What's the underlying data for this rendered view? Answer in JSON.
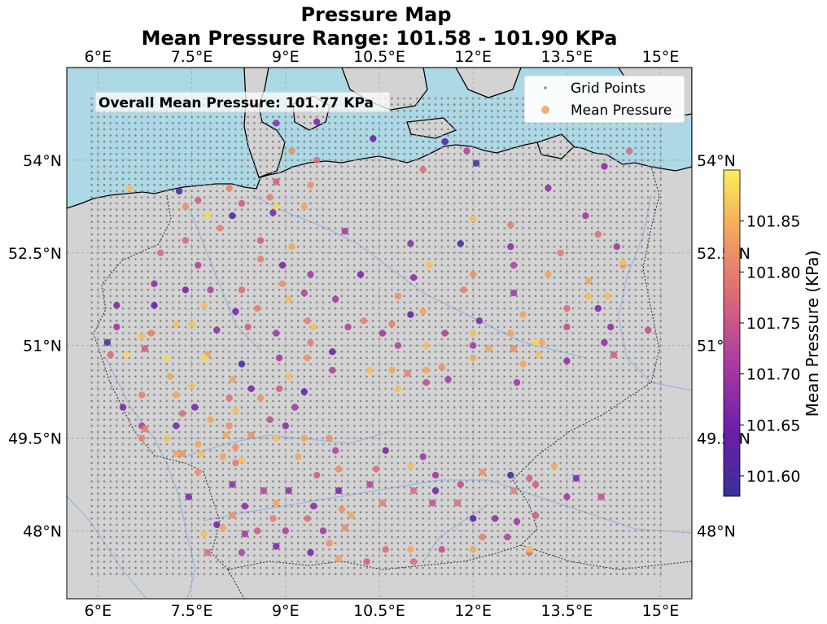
{
  "title": {
    "line1": "Pressure Map",
    "line2": "Mean Pressure Range: 101.58 - 101.90 KPa"
  },
  "annotation": "Overall Mean Pressure: 101.77 KPa",
  "legend": {
    "grid_points": "Grid Points",
    "mean_pressure": "Mean Pressure"
  },
  "colorbar": {
    "label": "Mean Pressure (KPa)",
    "ticks": [
      "101.60",
      "101.65",
      "101.70",
      "101.75",
      "101.80",
      "101.85"
    ]
  },
  "axes": {
    "lon_ticks": [
      "6°E",
      "7.5°E",
      "9°E",
      "10.5°E",
      "12°E",
      "13.5°E",
      "15°E"
    ],
    "lat_ticks": [
      "54°N",
      "52.5°N",
      "51°N",
      "49.5°N",
      "48°N"
    ]
  },
  "colors": {
    "sea": "#add8e6",
    "land": "#d3d3d3",
    "grid_points": "#808080",
    "rivers": "#9ab8e0",
    "plasma_low": "#3c2f96",
    "plasma_high": "#f7f058"
  },
  "chart_data": {
    "type": "scatter",
    "extent": {
      "lon": [
        5.5,
        15.5
      ],
      "lat": [
        46.9,
        55.5
      ]
    },
    "grid_extent": {
      "lon": [
        5.9,
        15.0
      ],
      "lat": [
        47.3,
        55.05
      ]
    },
    "value_range": [
      101.58,
      101.9
    ],
    "overall_mean": 101.77,
    "stations": [
      [
        8.85,
        54.6,
        101.68
      ],
      [
        9.5,
        54.62,
        101.66
      ],
      [
        10.4,
        54.35,
        101.64
      ],
      [
        11.55,
        54.3,
        101.62
      ],
      [
        9.1,
        54.15,
        101.82
      ],
      [
        9.5,
        54.0,
        101.78
      ],
      [
        11.9,
        54.15,
        101.72
      ],
      [
        12.05,
        53.95,
        101.6
      ],
      [
        14.5,
        54.15,
        101.78
      ],
      [
        14.1,
        53.9,
        101.68
      ],
      [
        11.2,
        53.85,
        101.78
      ],
      [
        6.5,
        53.55,
        101.86
      ],
      [
        7.3,
        53.5,
        101.6
      ],
      [
        7.4,
        53.25,
        101.82
      ],
      [
        7.6,
        53.35,
        101.76
      ],
      [
        8.1,
        53.55,
        101.8
      ],
      [
        8.75,
        53.4,
        101.8
      ],
      [
        8.85,
        53.65,
        101.76
      ],
      [
        9.4,
        53.6,
        101.82
      ],
      [
        13.2,
        53.55,
        101.68
      ],
      [
        8.3,
        53.3,
        101.76
      ],
      [
        8.85,
        53.25,
        101.88
      ],
      [
        9.3,
        53.25,
        101.84
      ],
      [
        8.15,
        53.1,
        101.6
      ],
      [
        7.75,
        53.1,
        101.88
      ],
      [
        8.8,
        53.15,
        101.66
      ],
      [
        12.0,
        53.05,
        101.86
      ],
      [
        12.6,
        52.95,
        101.8
      ],
      [
        13.8,
        53.1,
        101.7
      ],
      [
        14.0,
        52.8,
        101.78
      ],
      [
        7.95,
        52.9,
        101.8
      ],
      [
        7.4,
        52.7,
        101.78
      ],
      [
        8.6,
        52.7,
        101.76
      ],
      [
        9.95,
        52.85,
        101.7
      ],
      [
        11.0,
        52.65,
        101.68
      ],
      [
        11.8,
        52.65,
        101.6
      ],
      [
        12.6,
        52.6,
        101.68
      ],
      [
        13.4,
        52.5,
        101.8
      ],
      [
        14.3,
        52.6,
        101.7
      ],
      [
        7.0,
        52.5,
        101.78
      ],
      [
        9.1,
        52.6,
        101.84
      ],
      [
        8.6,
        52.4,
        101.8
      ],
      [
        7.6,
        52.3,
        101.72
      ],
      [
        8.95,
        52.3,
        101.66
      ],
      [
        14.4,
        52.3,
        101.82
      ],
      [
        11.3,
        52.3,
        101.86
      ],
      [
        12.65,
        52.3,
        101.72
      ],
      [
        14.4,
        52.35,
        101.86
      ],
      [
        9.4,
        52.15,
        101.7
      ],
      [
        10.2,
        52.15,
        101.66
      ],
      [
        11.05,
        52.1,
        101.68
      ],
      [
        12.0,
        52.15,
        101.82
      ],
      [
        13.2,
        52.15,
        101.84
      ],
      [
        13.85,
        52.05,
        101.84
      ],
      [
        6.9,
        52.0,
        101.68
      ],
      [
        7.4,
        51.9,
        101.66
      ],
      [
        7.8,
        51.9,
        101.72
      ],
      [
        8.3,
        51.9,
        101.78
      ],
      [
        8.95,
        52.0,
        101.82
      ],
      [
        8.2,
        51.55,
        101.66
      ],
      [
        9.3,
        51.85,
        101.72
      ],
      [
        9.8,
        51.75,
        101.7
      ],
      [
        10.8,
        51.8,
        101.82
      ],
      [
        11.85,
        51.9,
        101.8
      ],
      [
        12.65,
        51.85,
        101.7
      ],
      [
        13.85,
        51.8,
        101.86
      ],
      [
        14.15,
        51.8,
        101.86
      ],
      [
        6.3,
        51.65,
        101.66
      ],
      [
        6.9,
        51.65,
        101.64
      ],
      [
        7.7,
        51.65,
        101.86
      ],
      [
        8.55,
        51.6,
        101.8
      ],
      [
        9.05,
        51.75,
        101.86
      ],
      [
        11.0,
        51.5,
        101.64
      ],
      [
        11.2,
        51.55,
        101.84
      ],
      [
        12.1,
        51.4,
        101.66
      ],
      [
        12.8,
        51.5,
        101.84
      ],
      [
        13.5,
        51.6,
        101.78
      ],
      [
        14.0,
        51.6,
        101.66
      ],
      [
        6.3,
        51.3,
        101.7
      ],
      [
        7.25,
        51.35,
        101.86
      ],
      [
        7.5,
        51.35,
        101.86
      ],
      [
        7.9,
        51.25,
        101.68
      ],
      [
        8.4,
        51.3,
        101.76
      ],
      [
        9.35,
        51.4,
        101.8
      ],
      [
        9.45,
        51.3,
        101.86
      ],
      [
        10.0,
        51.3,
        101.72
      ],
      [
        10.55,
        51.2,
        101.7
      ],
      [
        10.25,
        51.4,
        101.8
      ],
      [
        11.55,
        51.2,
        101.72
      ],
      [
        12.0,
        51.2,
        101.86
      ],
      [
        12.6,
        51.2,
        101.84
      ],
      [
        13.5,
        51.3,
        101.74
      ],
      [
        14.2,
        51.3,
        101.68
      ],
      [
        14.8,
        51.25,
        101.74
      ],
      [
        6.85,
        51.2,
        101.8
      ],
      [
        6.7,
        51.15,
        101.86
      ],
      [
        6.15,
        51.05,
        101.6
      ],
      [
        8.85,
        51.2,
        101.7
      ],
      [
        10.7,
        51.35,
        101.8
      ],
      [
        7.75,
        50.85,
        101.84
      ],
      [
        9.4,
        51.05,
        101.8
      ],
      [
        9.75,
        50.9,
        101.64
      ],
      [
        10.8,
        51.0,
        101.72
      ],
      [
        11.25,
        51.0,
        101.86
      ],
      [
        12.0,
        51.0,
        101.7
      ],
      [
        12.25,
        50.95,
        101.84
      ],
      [
        12.65,
        50.95,
        101.82
      ],
      [
        13.0,
        51.05,
        101.88
      ],
      [
        14.1,
        51.05,
        101.68
      ],
      [
        6.2,
        50.85,
        101.78
      ],
      [
        6.45,
        50.85,
        101.88
      ],
      [
        6.75,
        50.95,
        101.76
      ],
      [
        7.1,
        50.8,
        101.88
      ],
      [
        7.7,
        50.8,
        101.88
      ],
      [
        8.3,
        50.7,
        101.6
      ],
      [
        8.9,
        50.8,
        101.7
      ],
      [
        9.35,
        50.8,
        101.82
      ],
      [
        10.35,
        50.6,
        101.86
      ],
      [
        10.95,
        50.55,
        101.8
      ],
      [
        11.5,
        50.65,
        101.82
      ],
      [
        12.0,
        50.8,
        101.84
      ],
      [
        12.8,
        50.7,
        101.84
      ],
      [
        13.05,
        50.85,
        101.86
      ],
      [
        13.5,
        50.75,
        101.68
      ],
      [
        14.25,
        50.85,
        101.76
      ],
      [
        7.15,
        50.5,
        101.84
      ],
      [
        7.5,
        50.35,
        101.86
      ],
      [
        8.15,
        50.45,
        101.84
      ],
      [
        9.05,
        50.5,
        101.86
      ],
      [
        9.75,
        50.6,
        101.72
      ],
      [
        10.7,
        50.6,
        101.84
      ],
      [
        11.25,
        50.6,
        101.84
      ],
      [
        11.6,
        50.45,
        101.7
      ],
      [
        12.7,
        50.4,
        101.7
      ],
      [
        8.9,
        50.3,
        101.76
      ],
      [
        9.3,
        50.25,
        101.64
      ],
      [
        10.8,
        50.3,
        101.86
      ],
      [
        11.25,
        50.4,
        101.74
      ],
      [
        6.4,
        50.0,
        101.66
      ],
      [
        6.7,
        50.2,
        101.8
      ],
      [
        7.25,
        50.2,
        101.84
      ],
      [
        7.55,
        50.0,
        101.66
      ],
      [
        8.1,
        50.15,
        101.78
      ],
      [
        8.45,
        50.3,
        101.66
      ],
      [
        8.6,
        50.15,
        101.82
      ],
      [
        9.15,
        50.0,
        101.7
      ],
      [
        7.35,
        49.9,
        101.78
      ],
      [
        6.7,
        49.7,
        101.72
      ],
      [
        6.75,
        49.65,
        101.8
      ],
      [
        7.1,
        49.5,
        101.86
      ],
      [
        7.25,
        49.7,
        101.66
      ],
      [
        7.6,
        49.4,
        101.84
      ],
      [
        7.8,
        49.8,
        101.84
      ],
      [
        8.1,
        49.7,
        101.82
      ],
      [
        8.2,
        49.95,
        101.86
      ],
      [
        8.75,
        49.8,
        101.74
      ],
      [
        9.0,
        49.7,
        101.68
      ],
      [
        9.3,
        49.5,
        101.84
      ],
      [
        9.7,
        49.5,
        101.82
      ],
      [
        8.85,
        49.5,
        101.86
      ],
      [
        8.45,
        49.55,
        101.82
      ],
      [
        8.05,
        49.55,
        101.84
      ],
      [
        8.2,
        49.35,
        101.82
      ],
      [
        7.25,
        49.25,
        101.84
      ],
      [
        7.35,
        49.25,
        101.82
      ],
      [
        7.65,
        49.25,
        101.86
      ],
      [
        8.0,
        49.2,
        101.84
      ],
      [
        8.3,
        49.15,
        101.86
      ],
      [
        8.2,
        49.1,
        101.8
      ],
      [
        9.2,
        49.2,
        101.84
      ],
      [
        9.8,
        49.3,
        101.72
      ],
      [
        10.6,
        49.3,
        101.66
      ],
      [
        11.2,
        49.2,
        101.7
      ],
      [
        6.7,
        49.5,
        101.8
      ],
      [
        9.5,
        48.9,
        101.76
      ],
      [
        9.85,
        49.0,
        101.82
      ],
      [
        10.45,
        49.0,
        101.78
      ],
      [
        11.0,
        49.05,
        101.86
      ],
      [
        11.4,
        48.9,
        101.7
      ],
      [
        12.15,
        48.95,
        101.82
      ],
      [
        12.9,
        48.85,
        101.76
      ],
      [
        13.3,
        49.05,
        101.84
      ],
      [
        13.65,
        48.85,
        101.66
      ],
      [
        12.6,
        48.9,
        101.58
      ],
      [
        7.6,
        48.95,
        101.82
      ],
      [
        8.15,
        48.75,
        101.68
      ],
      [
        8.65,
        48.65,
        101.72
      ],
      [
        9.05,
        48.65,
        101.68
      ],
      [
        9.85,
        48.65,
        101.66
      ],
      [
        10.35,
        48.75,
        101.72
      ],
      [
        11.05,
        48.65,
        101.78
      ],
      [
        11.4,
        48.65,
        101.66
      ],
      [
        11.8,
        48.75,
        101.74
      ],
      [
        12.65,
        48.65,
        101.8
      ],
      [
        13.0,
        48.75,
        101.76
      ],
      [
        13.5,
        48.55,
        101.7
      ],
      [
        14.05,
        48.55,
        101.74
      ],
      [
        7.45,
        48.55,
        101.66
      ],
      [
        8.35,
        48.4,
        101.68
      ],
      [
        8.85,
        48.45,
        101.84
      ],
      [
        9.45,
        48.4,
        101.68
      ],
      [
        9.9,
        48.35,
        101.82
      ],
      [
        10.55,
        48.45,
        101.8
      ],
      [
        11.35,
        48.45,
        101.74
      ],
      [
        11.75,
        48.45,
        101.78
      ],
      [
        12.0,
        48.2,
        101.62
      ],
      [
        12.35,
        48.2,
        101.68
      ],
      [
        12.7,
        48.15,
        101.7
      ],
      [
        13.0,
        48.25,
        101.76
      ],
      [
        8.15,
        48.25,
        101.82
      ],
      [
        8.8,
        48.2,
        101.8
      ],
      [
        9.35,
        48.2,
        101.78
      ],
      [
        10.05,
        48.25,
        101.84
      ],
      [
        7.9,
        48.1,
        101.66
      ],
      [
        8.0,
        48.05,
        101.84
      ],
      [
        8.55,
        48.0,
        101.76
      ],
      [
        9.0,
        48.0,
        101.72
      ],
      [
        9.6,
        48.0,
        101.7
      ],
      [
        9.95,
        48.05,
        101.82
      ],
      [
        7.7,
        47.95,
        101.86
      ],
      [
        8.35,
        47.95,
        101.7
      ],
      [
        12.55,
        47.9,
        101.72
      ],
      [
        12.15,
        47.9,
        101.8
      ],
      [
        9.7,
        47.8,
        101.82
      ],
      [
        10.6,
        47.7,
        101.78
      ],
      [
        11.0,
        47.7,
        101.84
      ],
      [
        11.5,
        47.7,
        101.74
      ],
      [
        12.0,
        47.7,
        101.84
      ],
      [
        12.9,
        47.65,
        101.78
      ],
      [
        7.75,
        47.65,
        101.78
      ],
      [
        8.3,
        47.65,
        101.72
      ],
      [
        8.85,
        47.75,
        101.66
      ],
      [
        9.4,
        47.65,
        101.66
      ],
      [
        10.3,
        47.5,
        101.76
      ],
      [
        11.05,
        47.5,
        101.78
      ],
      [
        12.9,
        47.7,
        101.86
      ],
      [
        9.85,
        47.55,
        101.84
      ],
      [
        13.1,
        51.05,
        101.84
      ]
    ]
  }
}
